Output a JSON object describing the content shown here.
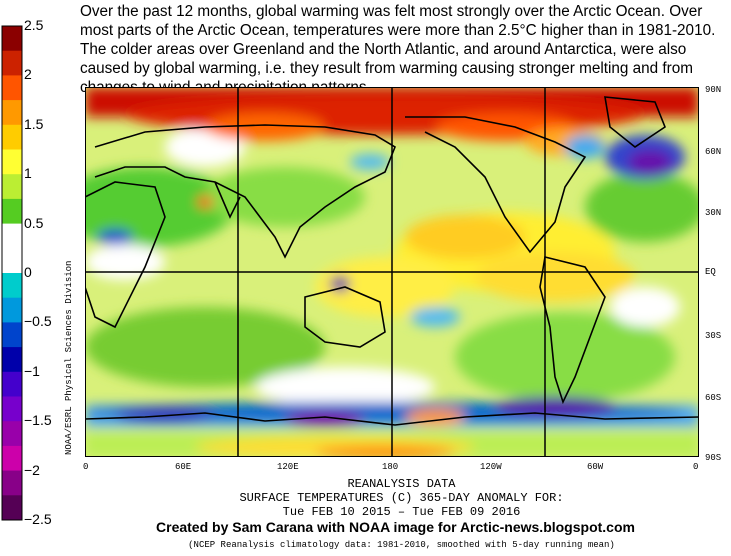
{
  "headline": "Over the past 12 months, global warming was felt most strongly over the Arctic Ocean. Over most parts of the Arctic Ocean, temperatures were more than 2.5°C higher than in 1981-2010. The colder areas over Greenland and the North Atlantic, and around Antarctica, were also caused by global warming, i.e. they result from warming causing stronger melting and from changes to wind and precipitation patterns.",
  "scale": {
    "labels": [
      "2.5",
      "2",
      "1.5",
      "1",
      "0.5",
      "0",
      "−0.5",
      "−1",
      "−1.5",
      "−2",
      "−2.5"
    ],
    "colors": [
      "#8b0000",
      "#cc2200",
      "#ff5500",
      "#ff9900",
      "#ffcc00",
      "#ffff33",
      "#bbee33",
      "#55cc22",
      "#ffffff",
      "#ffffff",
      "#00cccc",
      "#0099dd",
      "#0044cc",
      "#0000aa",
      "#4400cc",
      "#7700cc",
      "#9900aa",
      "#cc00aa",
      "#880088",
      "#550055"
    ]
  },
  "side_credit": "NOAA/ESRL Physical Sciences Division",
  "map": {
    "lat_labels": [
      "90N",
      "60N",
      "30N",
      "EQ",
      "30S",
      "60S",
      "90S"
    ],
    "lon_labels": [
      "0",
      "60E",
      "120E",
      "180",
      "120W",
      "60W",
      "0"
    ]
  },
  "footer": {
    "line1": "REANALYSIS DATA",
    "line2": "SURFACE TEMPERATURES (C)    365-DAY ANOMALY FOR:",
    "line3": "Tue FEB 10 2015 – Tue FEB 09 2016",
    "created_by": "Created by Sam Carana with NOAA image for Arctic-news.blogspot.com",
    "note": "(NCEP Reanalysis climatology data: 1981-2010, smoothed with 5-day running mean)"
  }
}
